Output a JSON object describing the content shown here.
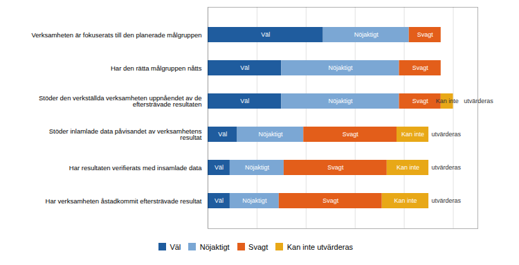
{
  "chart_data": {
    "type": "bar",
    "orientation": "horizontal",
    "stacked": true,
    "categories": [
      "Verksamheten är fokuserats till den planerade målgruppen",
      "Har den rätta målgruppen nåtts",
      "Stöder den verkställda verksamheten uppnåendet av de\neftersträvade resultaten",
      "Stöder inlamlade data påvisandet av verksamhetens\nresultat",
      "Har resultaten verifierats med insamlade data",
      "Har verksamheten åstadkommit eftersträvade resultat"
    ],
    "series": [
      {
        "name": "Väl",
        "color": "#1F5C9E",
        "values": [
          47,
          30,
          30,
          12,
          9,
          9
        ]
      },
      {
        "name": "Nöjaktigt",
        "color": "#7BA7D4",
        "values": [
          35,
          48,
          48,
          27,
          22,
          20
        ]
      },
      {
        "name": "Svagt",
        "color": "#E35E1A",
        "values": [
          13,
          17,
          17,
          38,
          42,
          42
        ]
      },
      {
        "name": "Kan inte utvärderas",
        "color": "#E8A817",
        "values": [
          0,
          0,
          5,
          13,
          17,
          19
        ]
      }
    ],
    "xlim": [
      0,
      110
    ],
    "xticks": [
      0,
      20,
      40,
      60,
      80,
      100
    ],
    "grid": true,
    "tick_labels": "y",
    "legend": "bottom",
    "annotations": {
      "inside": [
        "Väl",
        "Nöjaktigt",
        "Svagt",
        "Kan inte"
      ],
      "outside": "utvärderas"
    }
  }
}
